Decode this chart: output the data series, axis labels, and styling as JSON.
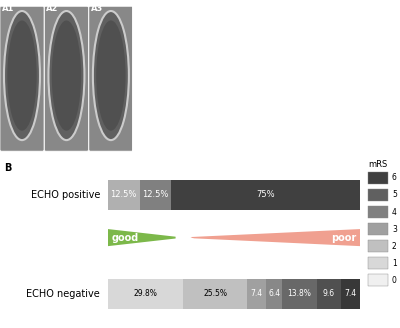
{
  "panel_b_label": "B",
  "echo_positive_label": "ECHO positive",
  "echo_negative_label": "ECHO negative",
  "good_label": "good",
  "poor_label": "poor",
  "mRS_label": "mRS",
  "legend_labels": [
    "6",
    "5",
    "4",
    "3",
    "2",
    "1",
    "0"
  ],
  "echo_positive": {
    "values": [
      12.5,
      12.5,
      75.0
    ],
    "labels": [
      "12.5%",
      "12.5%",
      "75%"
    ],
    "colors": [
      "#b0b0b0",
      "#808080",
      "#404040"
    ]
  },
  "echo_negative": {
    "values": [
      29.8,
      25.5,
      7.4,
      6.4,
      13.8,
      9.6,
      7.4
    ],
    "labels": [
      "29.8%",
      "25.5%",
      "7.4",
      "6.4",
      "13.8%",
      "9.6",
      "7.4"
    ],
    "colors": [
      "#d8d8d8",
      "#c0c0c0",
      "#a0a0a0",
      "#888888",
      "#686868",
      "#505050",
      "#383838"
    ]
  },
  "arrow_good_color": "#7cb84a",
  "arrow_poor_color": "#f0a090",
  "bg_color": "#ffffff",
  "bar_height": 0.35
}
